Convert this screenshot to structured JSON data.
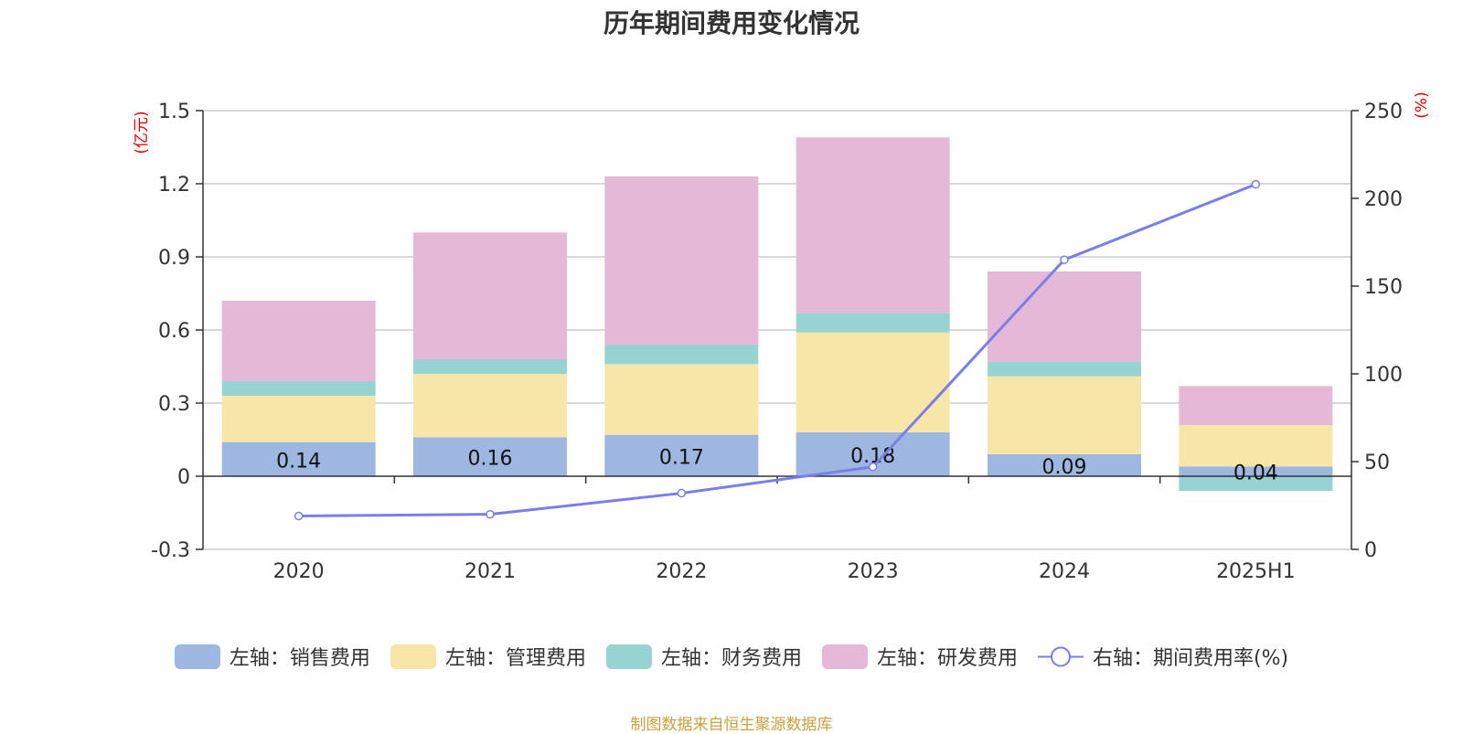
{
  "title": "历年期间费用变化情况",
  "source": "制图数据来自恒生聚源数据库",
  "colors": {
    "sales": "#9db7e1",
    "admin": "#f7e6a7",
    "finance": "#97d3d3",
    "rd": "#e6b8d8",
    "rate": "#7a7ee8",
    "axis_unit": "#e00000"
  },
  "chart_data": {
    "type": "bar",
    "stacked": true,
    "categories": [
      "2020",
      "2021",
      "2022",
      "2023",
      "2024",
      "2025H1"
    ],
    "left_axis": {
      "unit": "(亿元)",
      "ylim": [
        -0.3,
        1.5
      ],
      "ticks": [
        "1.5",
        "1.2",
        "0.9",
        "0.6",
        "0.3",
        "0",
        "-0.3"
      ]
    },
    "right_axis": {
      "unit": "(%)",
      "ylim": [
        0,
        250
      ],
      "ticks": [
        "250",
        "200",
        "150",
        "100",
        "50",
        "0"
      ]
    },
    "grid": true,
    "legend_position": "bottom",
    "series": [
      {
        "name": "左轴：销售费用",
        "axis": "left",
        "values": [
          0.14,
          0.16,
          0.17,
          0.18,
          0.09,
          0.04
        ],
        "labels": [
          "0.14",
          "0.16",
          "0.17",
          "0.18",
          "0.09",
          "0.04"
        ]
      },
      {
        "name": "左轴：管理费用",
        "axis": "left",
        "values": [
          0.19,
          0.26,
          0.29,
          0.41,
          0.32,
          0.17
        ]
      },
      {
        "name": "左轴：财务费用",
        "axis": "left",
        "values": [
          0.06,
          0.06,
          0.08,
          0.08,
          0.06,
          -0.06
        ]
      },
      {
        "name": "左轴：研发费用",
        "axis": "left",
        "values": [
          0.33,
          0.52,
          0.69,
          0.72,
          0.37,
          0.16
        ]
      },
      {
        "name": "右轴：期间费用率(%)",
        "axis": "right",
        "type": "line",
        "values": [
          19,
          20,
          32,
          47,
          165,
          208
        ]
      }
    ]
  }
}
